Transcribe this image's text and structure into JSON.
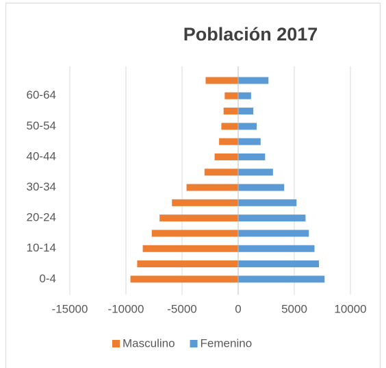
{
  "chart_data": {
    "type": "bar",
    "orientation": "horizontal",
    "stacked": true,
    "title": "Población 2017",
    "categories": [
      "0-4",
      null,
      "10-14",
      null,
      "20-24",
      null,
      "30-34",
      null,
      "40-44",
      null,
      "50-54",
      null,
      "60-64",
      null
    ],
    "series": [
      {
        "name": "Masculino",
        "color": "#ed7d31",
        "values": [
          -9600,
          -9000,
          -8500,
          -7700,
          -7000,
          -5900,
          -4600,
          -3000,
          -2100,
          -1700,
          -1500,
          -1300,
          -1200,
          -2900
        ]
      },
      {
        "name": "Femenino",
        "color": "#5b9bd5",
        "values": [
          7700,
          7200,
          6800,
          6300,
          6000,
          5200,
          4100,
          3100,
          2400,
          2000,
          1650,
          1350,
          1150,
          2700
        ]
      }
    ],
    "xlim": [
      -15000,
      10000
    ],
    "xticks": [
      -15000,
      -10000,
      -5000,
      0,
      5000,
      10000
    ],
    "grid": true,
    "legend": "bottom"
  }
}
